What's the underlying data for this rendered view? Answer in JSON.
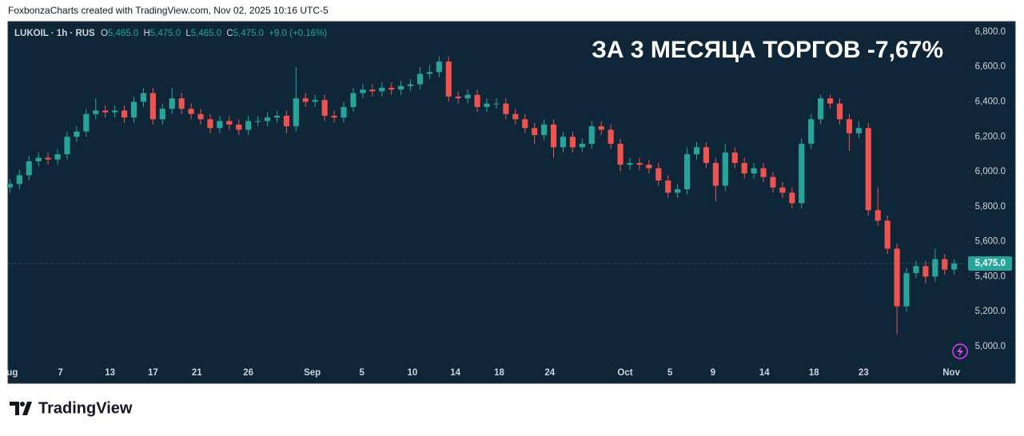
{
  "header": {
    "attribution": "FoxbonzaCharts created with TradingView.com, Nov 02, 2025 10:16 UTC-5"
  },
  "footer": {
    "brand": "TradingView"
  },
  "chart_data": {
    "type": "candlestick",
    "title": "ЗА 3 МЕСЯЦА ТОРГОВ -7,67%",
    "legend": {
      "symbol": "LUKOIL · 1h · RUS",
      "ohlc": [
        {
          "key": "O",
          "value": "5,465.0"
        },
        {
          "key": "H",
          "value": "5,475.0"
        },
        {
          "key": "L",
          "value": "5,465.0"
        },
        {
          "key": "C",
          "value": "5,475.0"
        }
      ],
      "change": "+9.0 (+0.16%)"
    },
    "up_color": "#26a69a",
    "down_color": "#ef5350",
    "open": [
      5910,
      5930,
      5980,
      6060,
      6080,
      6070,
      6100,
      6200,
      6230,
      6330,
      6350,
      6340,
      6350,
      6310,
      6400,
      6450,
      6300,
      6360,
      6420,
      6360,
      6330,
      6300,
      6250,
      6290,
      6270,
      6240,
      6290,
      6290,
      6310,
      6320,
      6260,
      6420,
      6400,
      6410,
      6320,
      6310,
      6370,
      6450,
      6470,
      6460,
      6480,
      6470,
      6490,
      6500,
      6560,
      6570,
      6630,
      6430,
      6420,
      6440,
      6370,
      6390,
      6390,
      6330,
      6300,
      6250,
      6210,
      6270,
      6140,
      6200,
      6140,
      6160,
      6260,
      6240,
      6160,
      6040,
      6050,
      6040,
      6020,
      5950,
      5880,
      5900,
      6100,
      6140,
      6050,
      5920,
      6110,
      6050,
      5990,
      6020,
      5970,
      5910,
      5880,
      5820,
      6160,
      6300,
      6420,
      6390,
      6300,
      6220,
      6250,
      5780,
      5720,
      5560,
      5230,
      5420,
      5460,
      5400,
      5500,
      5440
    ],
    "high": [
      5960,
      6010,
      6090,
      6110,
      6110,
      6130,
      6230,
      6260,
      6360,
      6420,
      6380,
      6380,
      6380,
      6430,
      6480,
      6480,
      6390,
      6480,
      6450,
      6390,
      6360,
      6330,
      6320,
      6320,
      6300,
      6320,
      6320,
      6340,
      6350,
      6350,
      6600,
      6450,
      6440,
      6440,
      6350,
      6400,
      6480,
      6500,
      6500,
      6510,
      6510,
      6520,
      6530,
      6600,
      6610,
      6660,
      6660,
      6460,
      6470,
      6470,
      6420,
      6420,
      6420,
      6360,
      6330,
      6280,
      6300,
      6300,
      6230,
      6230,
      6190,
      6290,
      6290,
      6270,
      6190,
      6080,
      6080,
      6070,
      6050,
      5980,
      5930,
      6140,
      6170,
      6170,
      6080,
      6160,
      6140,
      6080,
      6050,
      6050,
      6000,
      5940,
      5910,
      6190,
      6330,
      6440,
      6440,
      6420,
      6330,
      6290,
      6280,
      5910,
      5750,
      5590,
      5450,
      5490,
      5490,
      5560,
      5530,
      5500
    ],
    "low": [
      5880,
      5900,
      5950,
      6030,
      6040,
      6040,
      6070,
      6170,
      6200,
      6300,
      6310,
      6310,
      6280,
      6280,
      6370,
      6270,
      6270,
      6330,
      6330,
      6300,
      6270,
      6220,
      6220,
      6240,
      6210,
      6210,
      6260,
      6260,
      6280,
      6220,
      6230,
      6370,
      6370,
      6290,
      6280,
      6280,
      6340,
      6420,
      6430,
      6430,
      6440,
      6440,
      6460,
      6470,
      6530,
      6540,
      6400,
      6390,
      6390,
      6340,
      6340,
      6360,
      6300,
      6270,
      6220,
      6160,
      6180,
      6080,
      6110,
      6110,
      6110,
      6130,
      6210,
      6130,
      6000,
      6010,
      6010,
      5990,
      5920,
      5850,
      5850,
      5870,
      6070,
      6020,
      5830,
      5890,
      6020,
      5960,
      5960,
      5940,
      5880,
      5850,
      5790,
      5790,
      6130,
      6270,
      6360,
      6270,
      6120,
      6190,
      5750,
      5690,
      5530,
      5070,
      5200,
      5390,
      5360,
      5370,
      5410,
      5410
    ],
    "close": [
      5930,
      5980,
      6060,
      6080,
      6070,
      6100,
      6200,
      6230,
      6330,
      6350,
      6340,
      6350,
      6310,
      6400,
      6450,
      6300,
      6360,
      6420,
      6360,
      6330,
      6300,
      6250,
      6290,
      6270,
      6240,
      6290,
      6290,
      6310,
      6320,
      6260,
      6420,
      6400,
      6410,
      6320,
      6310,
      6370,
      6450,
      6470,
      6460,
      6480,
      6470,
      6490,
      6500,
      6560,
      6570,
      6630,
      6430,
      6420,
      6440,
      6370,
      6390,
      6390,
      6330,
      6300,
      6250,
      6210,
      6270,
      6140,
      6200,
      6140,
      6160,
      6260,
      6240,
      6160,
      6040,
      6050,
      6040,
      6020,
      5950,
      5880,
      5900,
      6100,
      6140,
      6050,
      5920,
      6110,
      6050,
      5990,
      6020,
      5970,
      5910,
      5880,
      5820,
      6160,
      6300,
      6420,
      6390,
      6300,
      6220,
      6250,
      5780,
      5720,
      5560,
      5230,
      5420,
      5460,
      5400,
      5500,
      5440,
      5475
    ],
    "last_price": {
      "value": 5475,
      "label": "5,475.0"
    },
    "xlim": [
      -0.2,
      100.2
    ],
    "xticks": [
      {
        "value": 0.25,
        "label": "ug"
      },
      {
        "value": 5.3,
        "label": "7"
      },
      {
        "value": 10.5,
        "label": "13"
      },
      {
        "value": 15,
        "label": "17"
      },
      {
        "value": 19.6,
        "label": "21"
      },
      {
        "value": 25,
        "label": "26"
      },
      {
        "value": 31.7,
        "label": "Sep"
      },
      {
        "value": 36.9,
        "label": "5"
      },
      {
        "value": 42.2,
        "label": "10"
      },
      {
        "value": 46.7,
        "label": "14"
      },
      {
        "value": 51.3,
        "label": "18"
      },
      {
        "value": 56.6,
        "label": "24"
      },
      {
        "value": 64.5,
        "label": "Oct"
      },
      {
        "value": 69.2,
        "label": "5"
      },
      {
        "value": 73.7,
        "label": "9"
      },
      {
        "value": 79.1,
        "label": "14"
      },
      {
        "value": 84.3,
        "label": "18"
      },
      {
        "value": 89.5,
        "label": "23"
      },
      {
        "value": 98.7,
        "label": "Nov"
      }
    ],
    "ylim": [
      4904,
      6859
    ],
    "yticks": [
      {
        "value": 5000,
        "label": "5,000.0"
      },
      {
        "value": 5200,
        "label": "5,200.0"
      },
      {
        "value": 5400,
        "label": "5,400.0"
      },
      {
        "value": 5600,
        "label": "5,600.0"
      },
      {
        "value": 5800,
        "label": "5,800.0"
      },
      {
        "value": 6000,
        "label": "6,000.0"
      },
      {
        "value": 6200,
        "label": "6,200.0"
      },
      {
        "value": 6400,
        "label": "6,400.0"
      },
      {
        "value": 6600,
        "label": "6,600.0"
      },
      {
        "value": 6800,
        "label": "6,800.0"
      }
    ]
  }
}
